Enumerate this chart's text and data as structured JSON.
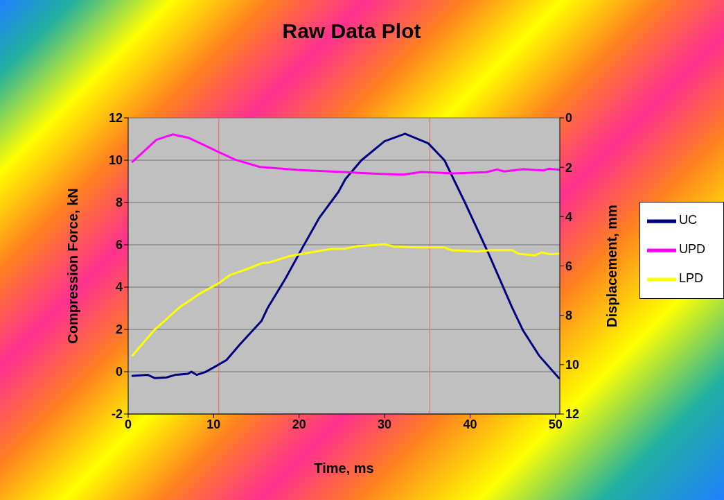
{
  "chart_data": {
    "type": "line",
    "title": "Raw Data Plot",
    "xlabel": "Time, ms",
    "ylabel": "Compression Force, kN",
    "y2label": "Displacement, mm",
    "xlim": [
      0,
      50.5
    ],
    "xticks": [
      0,
      10,
      20,
      30,
      40,
      50
    ],
    "ylim": [
      -2,
      12
    ],
    "yticks": [
      -2,
      0,
      2,
      4,
      6,
      8,
      10,
      12
    ],
    "y2lim": [
      12,
      0
    ],
    "y2ticks": [
      0,
      2,
      4,
      6,
      8,
      10,
      12
    ],
    "grid": "y",
    "legend": "right",
    "marker": "none",
    "line_style": "solid",
    "series": [
      {
        "name": "UC",
        "color": "#000080",
        "x": [
          0.5,
          2.3,
          3.1,
          4.5,
          5.5,
          7.0,
          7.4,
          8.0,
          9.0,
          10.0,
          11.5,
          13.1,
          15.6,
          16.3,
          18.4,
          20.3,
          22.4,
          24.6,
          25.4,
          27.3,
          30.0,
          32.4,
          35.1,
          37.0,
          39.4,
          42.2,
          44.9,
          46.2,
          48.1,
          50.4
        ],
        "values": [
          -0.2,
          -0.15,
          -0.3,
          -0.27,
          -0.15,
          -0.1,
          0.0,
          -0.15,
          -0.02,
          0.2,
          0.55,
          1.3,
          2.4,
          3.0,
          4.4,
          5.8,
          7.3,
          8.5,
          9.1,
          10.0,
          10.9,
          11.25,
          10.8,
          10.0,
          8.0,
          5.55,
          3.05,
          1.95,
          0.75,
          -0.3
        ]
      },
      {
        "name": "UPD",
        "color": "#ff00ff",
        "axis": "y2",
        "x": [
          0.5,
          3.3,
          5.2,
          7.0,
          9.0,
          10.6,
          12.5,
          15.4,
          19.8,
          25.4,
          29.5,
          32.2,
          34.3,
          38.1,
          41.9,
          43.2,
          44.0,
          46.2,
          48.6,
          49.2,
          50.4
        ],
        "values": [
          1.78,
          0.89,
          0.67,
          0.8,
          1.12,
          1.39,
          1.69,
          1.99,
          2.11,
          2.2,
          2.27,
          2.3,
          2.19,
          2.25,
          2.2,
          2.09,
          2.17,
          2.08,
          2.13,
          2.06,
          2.1
        ]
      },
      {
        "name": "LPD",
        "color": "#ffff00",
        "axis": "y2",
        "x": [
          0.5,
          3.0,
          6.0,
          8.4,
          10.6,
          11.9,
          13.8,
          15.7,
          16.5,
          18.9,
          22.4,
          23.8,
          25.4,
          26.8,
          30.0,
          31.1,
          33.8,
          37.0,
          37.8,
          40.8,
          42.4,
          44.9,
          45.7,
          47.6,
          48.4,
          49.4,
          50.4
        ],
        "values": [
          9.63,
          8.62,
          7.68,
          7.12,
          6.7,
          6.37,
          6.14,
          5.88,
          5.86,
          5.6,
          5.39,
          5.31,
          5.3,
          5.2,
          5.12,
          5.21,
          5.25,
          5.25,
          5.36,
          5.41,
          5.36,
          5.36,
          5.51,
          5.57,
          5.45,
          5.53,
          5.5
        ]
      }
    ],
    "ref_lines": [
      {
        "axis": "x",
        "value": 10.6,
        "color": "#ff6060"
      },
      {
        "axis": "x",
        "value": 35.3,
        "color": "#e06060"
      }
    ]
  }
}
